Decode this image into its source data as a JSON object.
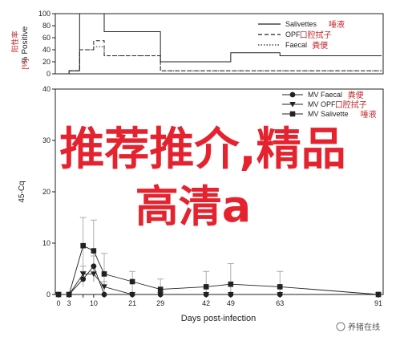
{
  "overlay": {
    "line1": "推荐推介,精品",
    "line2": "高清a"
  },
  "watermark": {
    "text": "养猪在线"
  },
  "colors": {
    "overlay": "#e5232f",
    "redlabel": "#c0282d",
    "ink": "#222222",
    "error": "#999999"
  },
  "chart_data": [
    {
      "type": "line",
      "step": true,
      "ylabel": "% Positive",
      "ylabel_cn": "阳性率",
      "ylabel_unit": "[%]",
      "ylim": [
        0,
        100
      ],
      "yticks": [
        0,
        20,
        40,
        60,
        80,
        100
      ],
      "legend_position": "top-right",
      "series": [
        {
          "name": "Salivettes",
          "name_cn": "唾液",
          "style": "solid",
          "points": [
            [
              0,
              0
            ],
            [
              3,
              5
            ],
            [
              6,
              100
            ],
            [
              10,
              100
            ],
            [
              13,
              70
            ],
            [
              29,
              20
            ],
            [
              42,
              20
            ],
            [
              49,
              35
            ],
            [
              63,
              30
            ],
            [
              91,
              30
            ]
          ]
        },
        {
          "name": "OPF",
          "name_cn": "口腔拭子",
          "style": "dashed",
          "points": [
            [
              0,
              0
            ],
            [
              3,
              5
            ],
            [
              6,
              40
            ],
            [
              10,
              55
            ],
            [
              13,
              30
            ],
            [
              29,
              5
            ],
            [
              42,
              5
            ],
            [
              49,
              5
            ],
            [
              63,
              5
            ],
            [
              91,
              5
            ]
          ]
        },
        {
          "name": "Faecal",
          "name_cn": "粪便",
          "style": "dotted",
          "points": [
            [
              0,
              0
            ],
            [
              3,
              5
            ],
            [
              6,
              40
            ],
            [
              10,
              45
            ],
            [
              13,
              30
            ],
            [
              29,
              5
            ],
            [
              42,
              5
            ],
            [
              49,
              5
            ],
            [
              63,
              5
            ],
            [
              91,
              5
            ]
          ]
        }
      ]
    },
    {
      "type": "line",
      "xlabel": "Days post-infection",
      "ylabel": "45-Cq",
      "ylim": [
        0,
        40
      ],
      "yticks": [
        0,
        10,
        20,
        30,
        40
      ],
      "x": [
        0,
        3,
        7,
        10,
        13,
        21,
        29,
        42,
        49,
        63,
        91
      ],
      "xticks": [
        0,
        3,
        7,
        10,
        13,
        21,
        29,
        42,
        49,
        63,
        91
      ],
      "xtick_labels": [
        "0",
        "3",
        "",
        "10",
        "",
        "21",
        "29",
        "42",
        "49",
        "63",
        "91"
      ],
      "legend_position": "top-right",
      "series": [
        {
          "name": "MV Faecal",
          "name_cn": "粪便",
          "marker": "circle",
          "values": [
            0,
            0,
            3,
            5.5,
            0,
            0,
            0,
            0,
            0,
            0,
            0
          ],
          "errors": [
            0,
            0,
            1.5,
            2,
            0,
            0,
            0,
            0,
            0,
            0,
            0
          ]
        },
        {
          "name": "MV OPF",
          "name_cn": "口腔拭子",
          "marker": "triangle-down",
          "values": [
            0,
            0,
            4,
            4,
            1.5,
            0,
            0,
            0,
            0,
            0,
            0
          ],
          "errors": [
            0,
            0,
            1.5,
            1.5,
            1,
            0,
            0,
            0,
            0,
            0,
            0
          ]
        },
        {
          "name": "MV Salivette",
          "name_cn": "唾液",
          "marker": "square",
          "values": [
            0,
            0,
            9.5,
            8.5,
            4,
            2.5,
            1,
            1.5,
            2,
            1.5,
            0
          ],
          "errors": [
            0,
            0,
            5.5,
            6,
            4,
            2,
            2,
            3,
            4,
            3,
            0
          ]
        }
      ]
    }
  ]
}
